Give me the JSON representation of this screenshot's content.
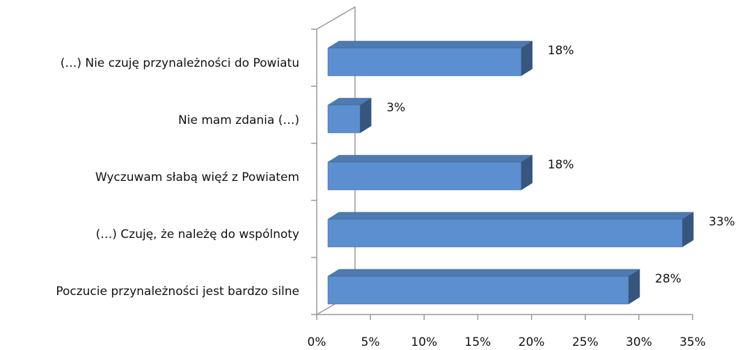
{
  "chart_data": {
    "type": "bar3d_horizontal",
    "categories": [
      "(…) Nie czuję przynależności do Powiatu",
      "Nie mam zdania (…)",
      "Wyczuwam słabą więź z Powiatem",
      "(…) Czuję, że należę do wspólnoty",
      "Poczucie przynależności jest bardzo silne"
    ],
    "values": [
      18,
      3,
      18,
      33,
      28
    ],
    "value_labels": [
      "18%",
      "3%",
      "18%",
      "33%",
      "28%"
    ],
    "color": "#5b8fd0",
    "xlim": [
      0,
      35
    ],
    "xticks": [
      {
        "value": 0,
        "label": "0%"
      },
      {
        "value": 5,
        "label": "5%"
      },
      {
        "value": 10,
        "label": "10%"
      },
      {
        "value": 15,
        "label": "15%"
      },
      {
        "value": 20,
        "label": "20%"
      },
      {
        "value": 25,
        "label": "25%"
      },
      {
        "value": 30,
        "label": "30%"
      },
      {
        "value": 35,
        "label": "35%"
      }
    ]
  }
}
